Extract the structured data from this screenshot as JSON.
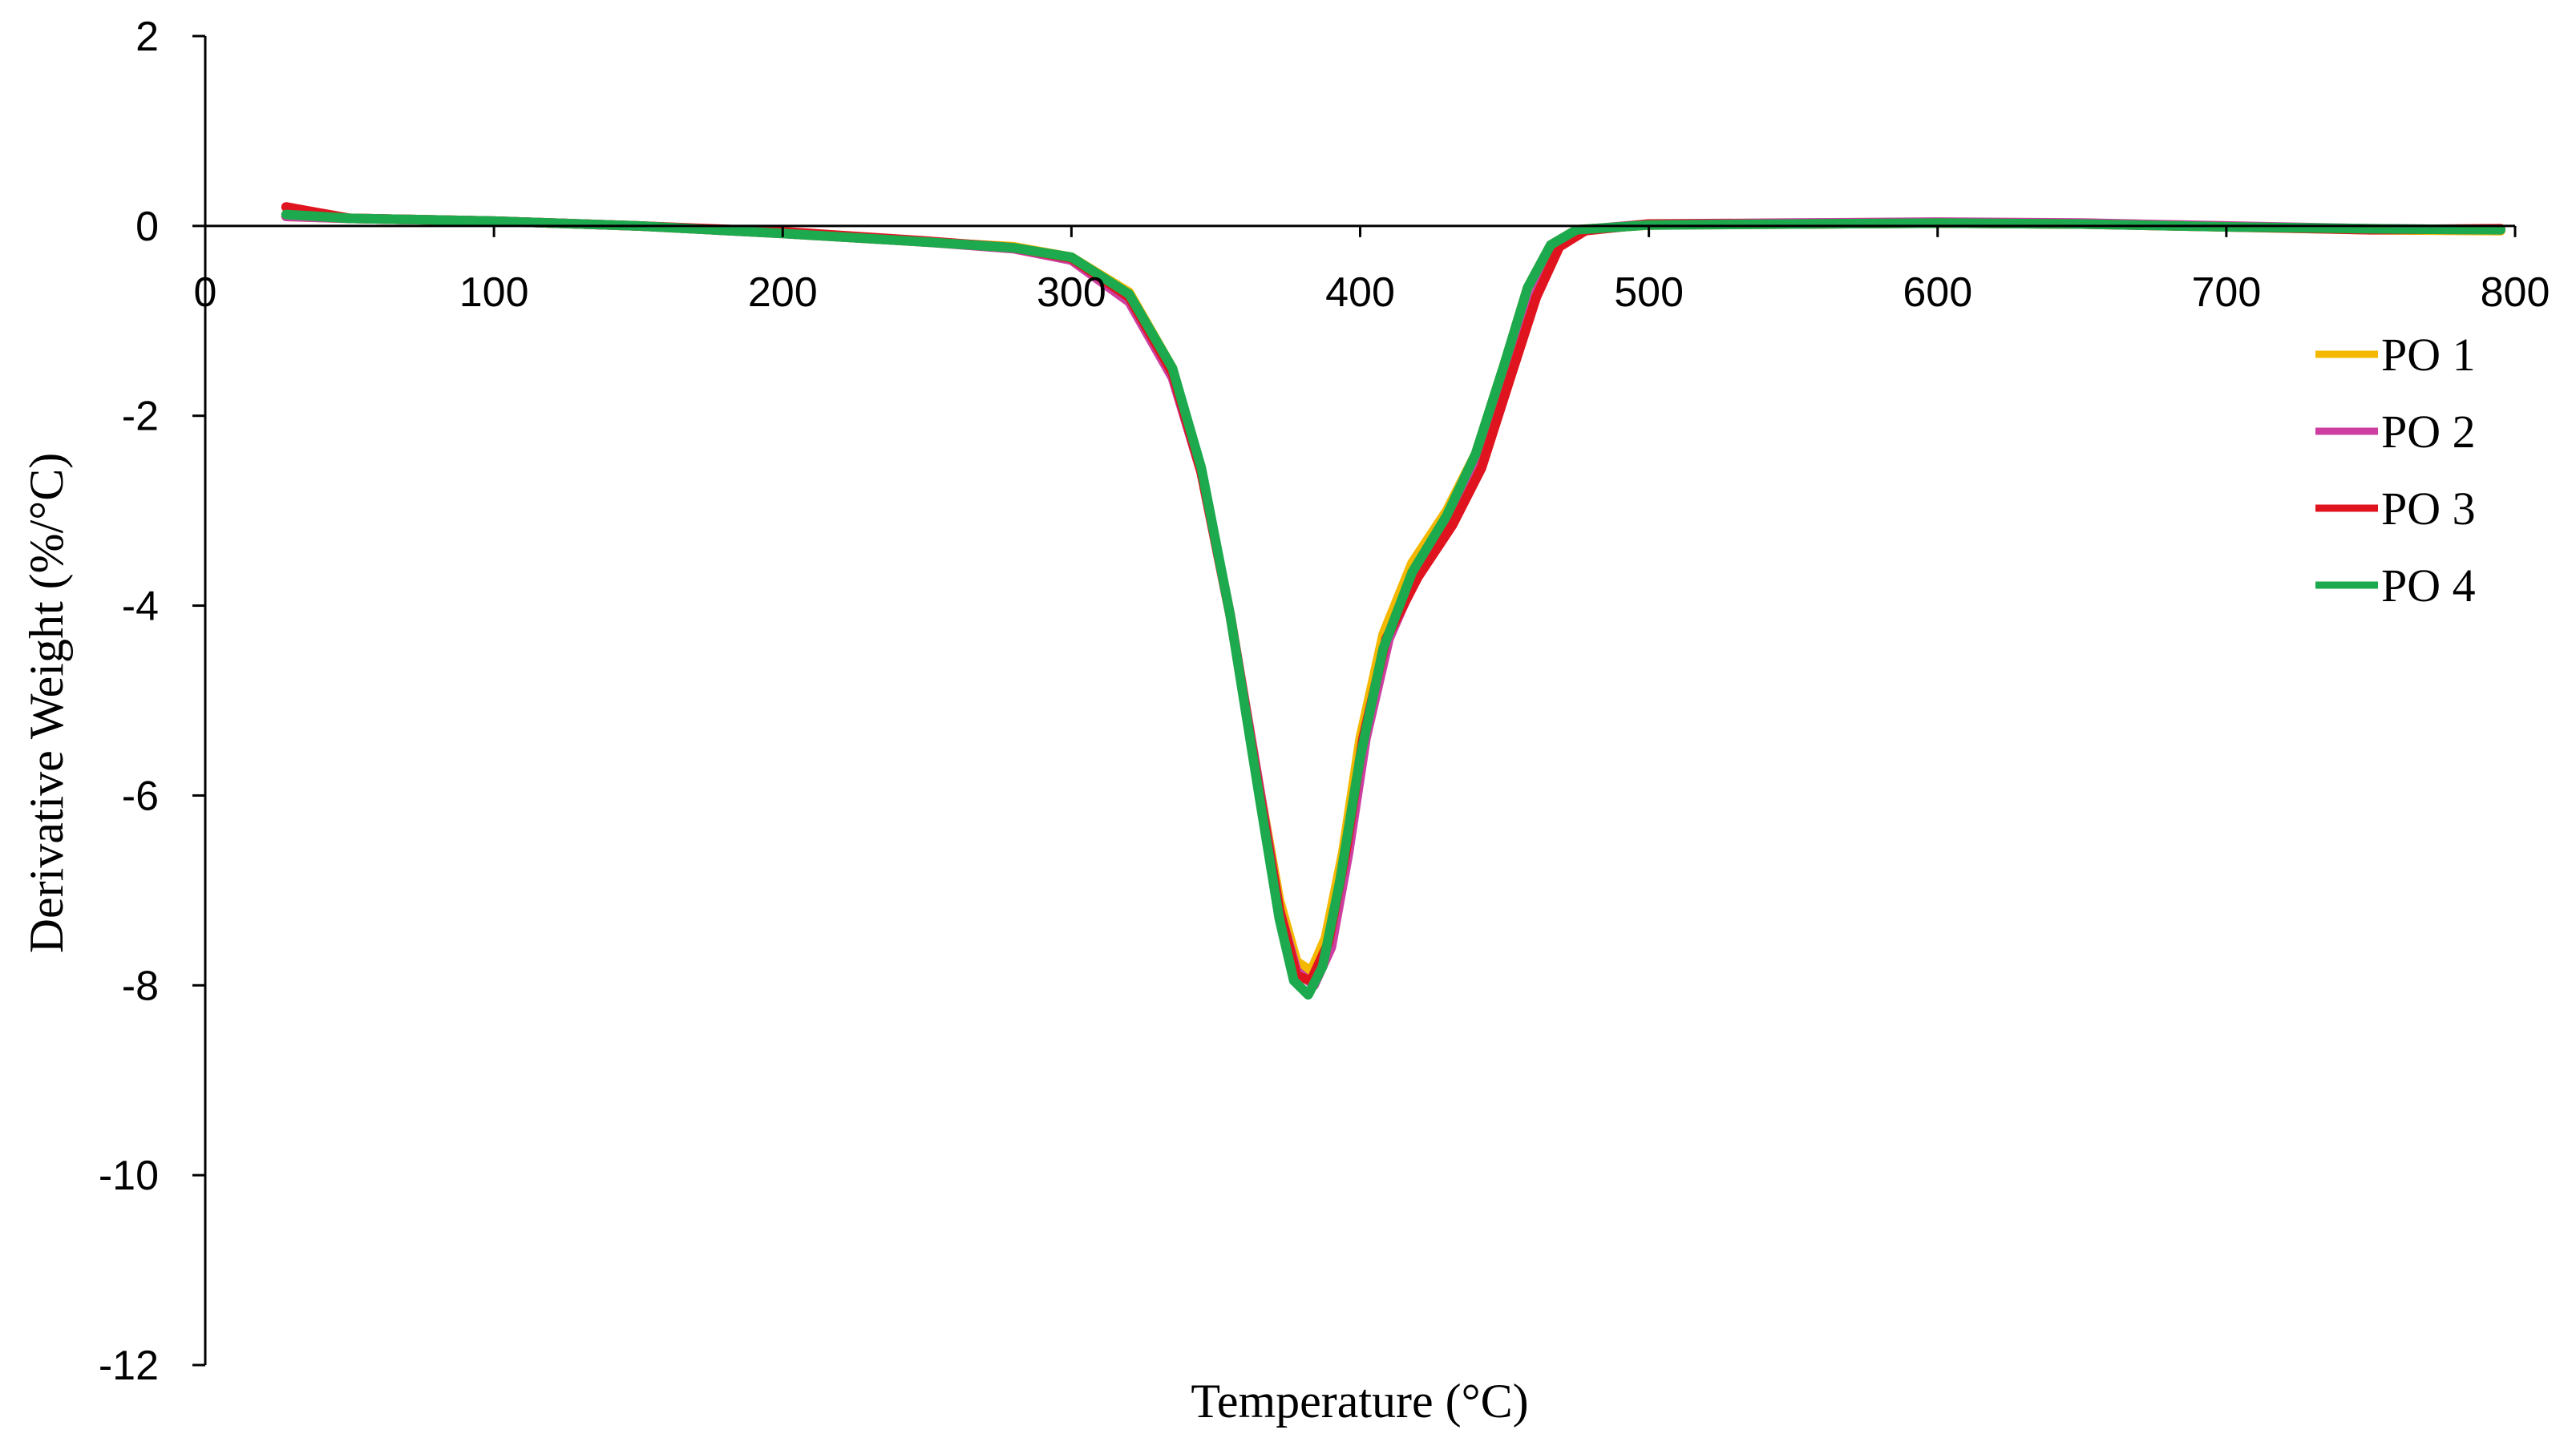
{
  "chart_data": {
    "type": "line",
    "title": "",
    "xlabel": "Temperature (°C)",
    "ylabel": "Derivative Weight (%/°C)",
    "xlim": [
      0,
      800
    ],
    "ylim": [
      -12,
      2
    ],
    "x_ticks": [
      0,
      100,
      200,
      300,
      400,
      500,
      600,
      700,
      800
    ],
    "y_ticks": [
      2,
      0,
      -2,
      -4,
      -6,
      -8,
      -10,
      -12
    ],
    "grid": false,
    "legend_position": "right",
    "series": [
      {
        "name": "PO 1",
        "color": "#F5B800",
        "points": [
          [
            28,
            0.1
          ],
          [
            50,
            0.08
          ],
          [
            100,
            0.05
          ],
          [
            150,
            0.0
          ],
          [
            200,
            -0.08
          ],
          [
            250,
            -0.17
          ],
          [
            280,
            -0.22
          ],
          [
            300,
            -0.33
          ],
          [
            320,
            -0.7
          ],
          [
            335,
            -1.5
          ],
          [
            345,
            -2.6
          ],
          [
            355,
            -4.1
          ],
          [
            365,
            -5.9
          ],
          [
            372,
            -7.1
          ],
          [
            378,
            -7.75
          ],
          [
            383,
            -7.85
          ],
          [
            388,
            -7.5
          ],
          [
            394,
            -6.6
          ],
          [
            400,
            -5.4
          ],
          [
            408,
            -4.3
          ],
          [
            418,
            -3.55
          ],
          [
            430,
            -3.0
          ],
          [
            440,
            -2.4
          ],
          [
            450,
            -1.45
          ],
          [
            458,
            -0.65
          ],
          [
            466,
            -0.2
          ],
          [
            475,
            -0.04
          ],
          [
            500,
            0.01
          ],
          [
            550,
            0.02
          ],
          [
            600,
            0.03
          ],
          [
            650,
            0.02
          ],
          [
            700,
            -0.01
          ],
          [
            750,
            -0.04
          ],
          [
            795,
            -0.05
          ]
        ]
      },
      {
        "name": "PO 2",
        "color": "#CC3FA0",
        "points": [
          [
            28,
            0.1
          ],
          [
            50,
            0.08
          ],
          [
            100,
            0.05
          ],
          [
            150,
            0.0
          ],
          [
            200,
            -0.08
          ],
          [
            250,
            -0.17
          ],
          [
            280,
            -0.24
          ],
          [
            300,
            -0.36
          ],
          [
            320,
            -0.8
          ],
          [
            335,
            -1.6
          ],
          [
            345,
            -2.6
          ],
          [
            355,
            -4.1
          ],
          [
            365,
            -5.9
          ],
          [
            372,
            -7.2
          ],
          [
            378,
            -7.85
          ],
          [
            384,
            -8.0
          ],
          [
            390,
            -7.6
          ],
          [
            396,
            -6.6
          ],
          [
            402,
            -5.4
          ],
          [
            410,
            -4.35
          ],
          [
            420,
            -3.65
          ],
          [
            432,
            -3.1
          ],
          [
            442,
            -2.5
          ],
          [
            452,
            -1.55
          ],
          [
            461,
            -0.7
          ],
          [
            468,
            -0.2
          ],
          [
            477,
            -0.04
          ],
          [
            500,
            0.02
          ],
          [
            550,
            0.03
          ],
          [
            600,
            0.04
          ],
          [
            650,
            0.03
          ],
          [
            700,
            0.0
          ],
          [
            750,
            -0.03
          ],
          [
            795,
            -0.04
          ]
        ]
      },
      {
        "name": "PO 3",
        "color": "#E0141E",
        "points": [
          [
            28,
            0.2
          ],
          [
            50,
            0.08
          ],
          [
            100,
            0.05
          ],
          [
            150,
            0.0
          ],
          [
            200,
            -0.06
          ],
          [
            250,
            -0.16
          ],
          [
            280,
            -0.23
          ],
          [
            300,
            -0.34
          ],
          [
            320,
            -0.75
          ],
          [
            335,
            -1.55
          ],
          [
            345,
            -2.6
          ],
          [
            355,
            -4.1
          ],
          [
            365,
            -5.95
          ],
          [
            372,
            -7.2
          ],
          [
            378,
            -7.9
          ],
          [
            383,
            -7.95
          ],
          [
            389,
            -7.55
          ],
          [
            395,
            -6.6
          ],
          [
            401,
            -5.4
          ],
          [
            409,
            -4.35
          ],
          [
            420,
            -3.7
          ],
          [
            432,
            -3.15
          ],
          [
            442,
            -2.55
          ],
          [
            452,
            -1.6
          ],
          [
            461,
            -0.75
          ],
          [
            469,
            -0.22
          ],
          [
            478,
            -0.05
          ],
          [
            500,
            0.02
          ],
          [
            550,
            0.02
          ],
          [
            600,
            0.03
          ],
          [
            650,
            0.02
          ],
          [
            700,
            -0.01
          ],
          [
            750,
            -0.04
          ],
          [
            795,
            -0.03
          ]
        ]
      },
      {
        "name": "PO 4",
        "color": "#1DAA4E",
        "points": [
          [
            28,
            0.12
          ],
          [
            50,
            0.08
          ],
          [
            100,
            0.05
          ],
          [
            150,
            0.0
          ],
          [
            200,
            -0.08
          ],
          [
            250,
            -0.17
          ],
          [
            280,
            -0.23
          ],
          [
            300,
            -0.33
          ],
          [
            320,
            -0.72
          ],
          [
            335,
            -1.5
          ],
          [
            345,
            -2.55
          ],
          [
            355,
            -4.1
          ],
          [
            365,
            -6.0
          ],
          [
            372,
            -7.3
          ],
          [
            377,
            -7.95
          ],
          [
            382,
            -8.1
          ],
          [
            387,
            -7.8
          ],
          [
            393,
            -6.9
          ],
          [
            400,
            -5.6
          ],
          [
            408,
            -4.45
          ],
          [
            418,
            -3.65
          ],
          [
            430,
            -3.05
          ],
          [
            440,
            -2.4
          ],
          [
            450,
            -1.45
          ],
          [
            458,
            -0.65
          ],
          [
            466,
            -0.2
          ],
          [
            475,
            -0.04
          ],
          [
            500,
            0.01
          ],
          [
            550,
            0.02
          ],
          [
            600,
            0.03
          ],
          [
            650,
            0.02
          ],
          [
            700,
            -0.01
          ],
          [
            750,
            -0.03
          ],
          [
            795,
            -0.04
          ]
        ]
      }
    ]
  }
}
